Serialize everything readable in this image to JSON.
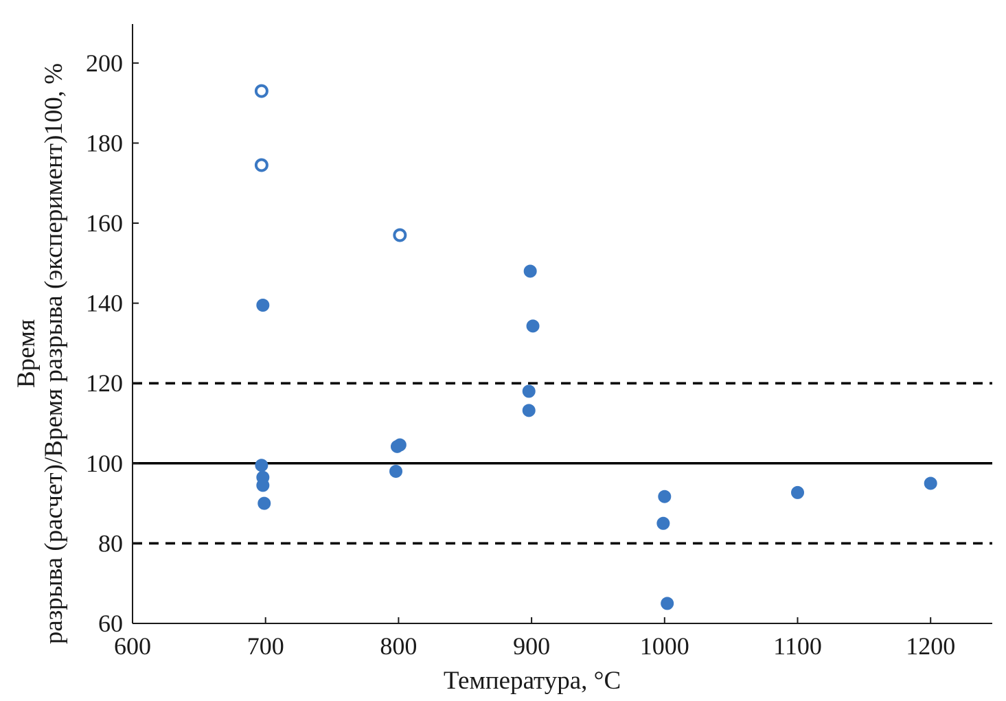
{
  "chart_data": {
    "type": "scatter",
    "title": "",
    "xlabel": "Температура, °C",
    "ylabel_lines": [
      "Время",
      "разрыва (расчет)/Время разрыва (эксперимент)100, %"
    ],
    "xlim": [
      600,
      1250
    ],
    "ylim": [
      60,
      210
    ],
    "x_ticks": [
      "600",
      "700",
      "800",
      "900",
      "1000",
      "1100",
      "1200"
    ],
    "y_ticks": [
      "60",
      "80",
      "100",
      "120",
      "140",
      "160",
      "180",
      "200"
    ],
    "grid": false,
    "reference_lines": [
      {
        "y": 120,
        "style": "dashed"
      },
      {
        "y": 100,
        "style": "solid"
      },
      {
        "y": 80,
        "style": "dashed"
      }
    ],
    "series": [
      {
        "marker": "open-circle",
        "color": "#3a78c3",
        "points": [
          [
            697,
            193
          ],
          [
            697,
            174.5
          ],
          [
            801,
            157
          ]
        ]
      },
      {
        "marker": "filled-circle",
        "color": "#3a78c3",
        "points": [
          [
            698,
            139.5
          ],
          [
            697,
            99.5
          ],
          [
            698,
            96.5
          ],
          [
            698,
            94.5
          ],
          [
            699,
            90
          ],
          [
            799,
            104.2
          ],
          [
            801,
            104.6
          ],
          [
            798,
            98
          ],
          [
            899,
            148
          ],
          [
            901,
            134.3
          ],
          [
            898,
            118
          ],
          [
            898,
            113.2
          ],
          [
            1000,
            91.7
          ],
          [
            999,
            85
          ],
          [
            1002,
            65
          ],
          [
            1100,
            92.7
          ],
          [
            1200,
            95
          ]
        ]
      }
    ]
  }
}
